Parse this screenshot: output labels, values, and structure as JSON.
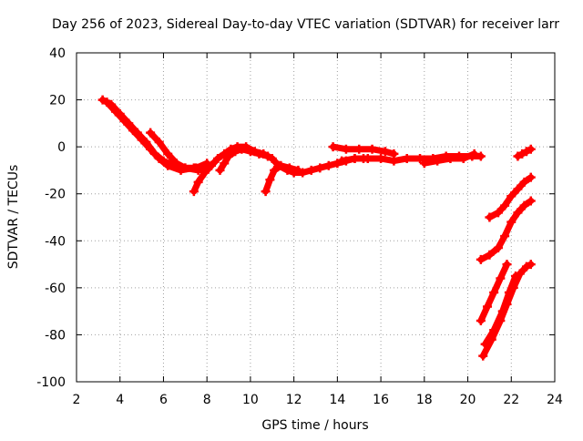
{
  "chart_data": {
    "type": "scatter",
    "title": "Day 256 of 2023, Sidereal Day-to-day VTEC variation (SDTVAR) for receiver larr",
    "xlabel": "GPS time / hours",
    "ylabel": "SDTVAR / TECUs",
    "xlim": [
      2,
      24
    ],
    "ylim": [
      -100,
      40
    ],
    "xticks": [
      2,
      4,
      6,
      8,
      10,
      12,
      14,
      16,
      18,
      20,
      22,
      24
    ],
    "yticks": [
      -100,
      -80,
      -60,
      -40,
      -20,
      0,
      20,
      40
    ],
    "grid": true,
    "series_color": "#ff0000",
    "series": [
      {
        "name": "track-1",
        "points": [
          [
            3.2,
            20
          ],
          [
            3.6,
            18
          ],
          [
            4.0,
            14
          ],
          [
            4.4,
            10
          ],
          [
            4.8,
            6
          ],
          [
            5.2,
            2
          ],
          [
            5.6,
            -3
          ],
          [
            6.0,
            -6
          ],
          [
            6.5,
            -8
          ],
          [
            7.0,
            -9
          ],
          [
            7.5,
            -9
          ],
          [
            8.0,
            -7
          ]
        ]
      },
      {
        "name": "track-2",
        "points": [
          [
            3.4,
            19
          ],
          [
            3.8,
            15
          ],
          [
            4.2,
            11
          ],
          [
            4.6,
            7
          ],
          [
            5.0,
            3
          ],
          [
            5.4,
            -1
          ],
          [
            5.8,
            -5
          ],
          [
            6.2,
            -8
          ],
          [
            6.8,
            -10
          ],
          [
            7.4,
            -9
          ]
        ]
      },
      {
        "name": "track-3",
        "points": [
          [
            5.4,
            6
          ],
          [
            5.8,
            2
          ],
          [
            6.2,
            -3
          ],
          [
            6.6,
            -7
          ],
          [
            7.0,
            -9
          ],
          [
            7.6,
            -10
          ],
          [
            8.2,
            -8
          ]
        ]
      },
      {
        "name": "track-4",
        "points": [
          [
            7.4,
            -19
          ],
          [
            7.6,
            -15
          ],
          [
            7.9,
            -11
          ],
          [
            8.2,
            -8
          ],
          [
            8.5,
            -5
          ],
          [
            8.8,
            -3
          ],
          [
            9.1,
            -1
          ],
          [
            9.4,
            0
          ],
          [
            9.8,
            0
          ],
          [
            10.2,
            -2
          ],
          [
            10.6,
            -3
          ],
          [
            11.0,
            -5
          ],
          [
            11.3,
            -8
          ],
          [
            11.7,
            -10
          ],
          [
            12.0,
            -11
          ],
          [
            12.4,
            -11
          ],
          [
            12.8,
            -10
          ],
          [
            13.2,
            -9
          ],
          [
            13.6,
            -8
          ],
          [
            14.0,
            -7
          ],
          [
            14.4,
            -6
          ],
          [
            14.8,
            -5
          ],
          [
            15.2,
            -5
          ]
        ]
      },
      {
        "name": "track-5",
        "points": [
          [
            8.6,
            -10
          ],
          [
            8.8,
            -7
          ],
          [
            9.0,
            -4
          ],
          [
            9.3,
            -2
          ],
          [
            9.6,
            -1
          ],
          [
            10.0,
            -2
          ],
          [
            10.4,
            -3
          ],
          [
            10.8,
            -4
          ]
        ]
      },
      {
        "name": "track-6",
        "points": [
          [
            10.7,
            -19
          ],
          [
            10.9,
            -14
          ],
          [
            11.1,
            -10
          ],
          [
            11.4,
            -8
          ],
          [
            11.8,
            -9
          ],
          [
            12.2,
            -10
          ]
        ]
      },
      {
        "name": "track-7",
        "points": [
          [
            13.8,
            0
          ],
          [
            14.4,
            -1
          ],
          [
            15.0,
            -1
          ],
          [
            15.6,
            -1
          ],
          [
            16.2,
            -2
          ],
          [
            16.6,
            -3
          ]
        ]
      },
      {
        "name": "track-8",
        "points": [
          [
            14.2,
            -6
          ],
          [
            14.8,
            -5
          ],
          [
            15.4,
            -5
          ],
          [
            16.0,
            -5
          ],
          [
            16.6,
            -6
          ],
          [
            17.2,
            -5
          ],
          [
            17.8,
            -5
          ],
          [
            18.4,
            -5
          ],
          [
            19.0,
            -4
          ],
          [
            19.6,
            -4
          ],
          [
            20.2,
            -4
          ],
          [
            20.6,
            -4
          ]
        ]
      },
      {
        "name": "track-9",
        "points": [
          [
            18.0,
            -7
          ],
          [
            18.6,
            -6
          ],
          [
            19.2,
            -5
          ],
          [
            19.8,
            -5
          ],
          [
            20.3,
            -3
          ]
        ]
      },
      {
        "name": "track-10",
        "points": [
          [
            20.6,
            -48
          ],
          [
            21.0,
            -46
          ],
          [
            21.4,
            -43
          ],
          [
            21.7,
            -38
          ],
          [
            22.0,
            -32
          ],
          [
            22.3,
            -28
          ],
          [
            22.6,
            -25
          ],
          [
            22.9,
            -23
          ]
        ]
      },
      {
        "name": "track-11",
        "points": [
          [
            21.0,
            -30
          ],
          [
            21.4,
            -28
          ],
          [
            21.7,
            -25
          ],
          [
            22.0,
            -21
          ],
          [
            22.3,
            -18
          ],
          [
            22.6,
            -15
          ],
          [
            22.9,
            -13
          ]
        ]
      },
      {
        "name": "track-12",
        "points": [
          [
            22.3,
            -4
          ],
          [
            22.5,
            -3
          ],
          [
            22.7,
            -2
          ],
          [
            22.9,
            -1
          ]
        ]
      },
      {
        "name": "track-13",
        "points": [
          [
            20.6,
            -74
          ],
          [
            20.9,
            -68
          ],
          [
            21.2,
            -62
          ],
          [
            21.5,
            -56
          ],
          [
            21.8,
            -50
          ]
        ]
      },
      {
        "name": "track-14",
        "points": [
          [
            20.7,
            -89
          ],
          [
            21.1,
            -82
          ],
          [
            21.5,
            -74
          ],
          [
            21.8,
            -67
          ],
          [
            22.1,
            -60
          ],
          [
            22.4,
            -54
          ],
          [
            22.7,
            -51
          ],
          [
            22.9,
            -50
          ]
        ]
      },
      {
        "name": "track-15",
        "points": [
          [
            20.8,
            -84
          ],
          [
            21.2,
            -78
          ],
          [
            21.6,
            -70
          ],
          [
            21.9,
            -62
          ],
          [
            22.2,
            -55
          ]
        ]
      }
    ]
  }
}
